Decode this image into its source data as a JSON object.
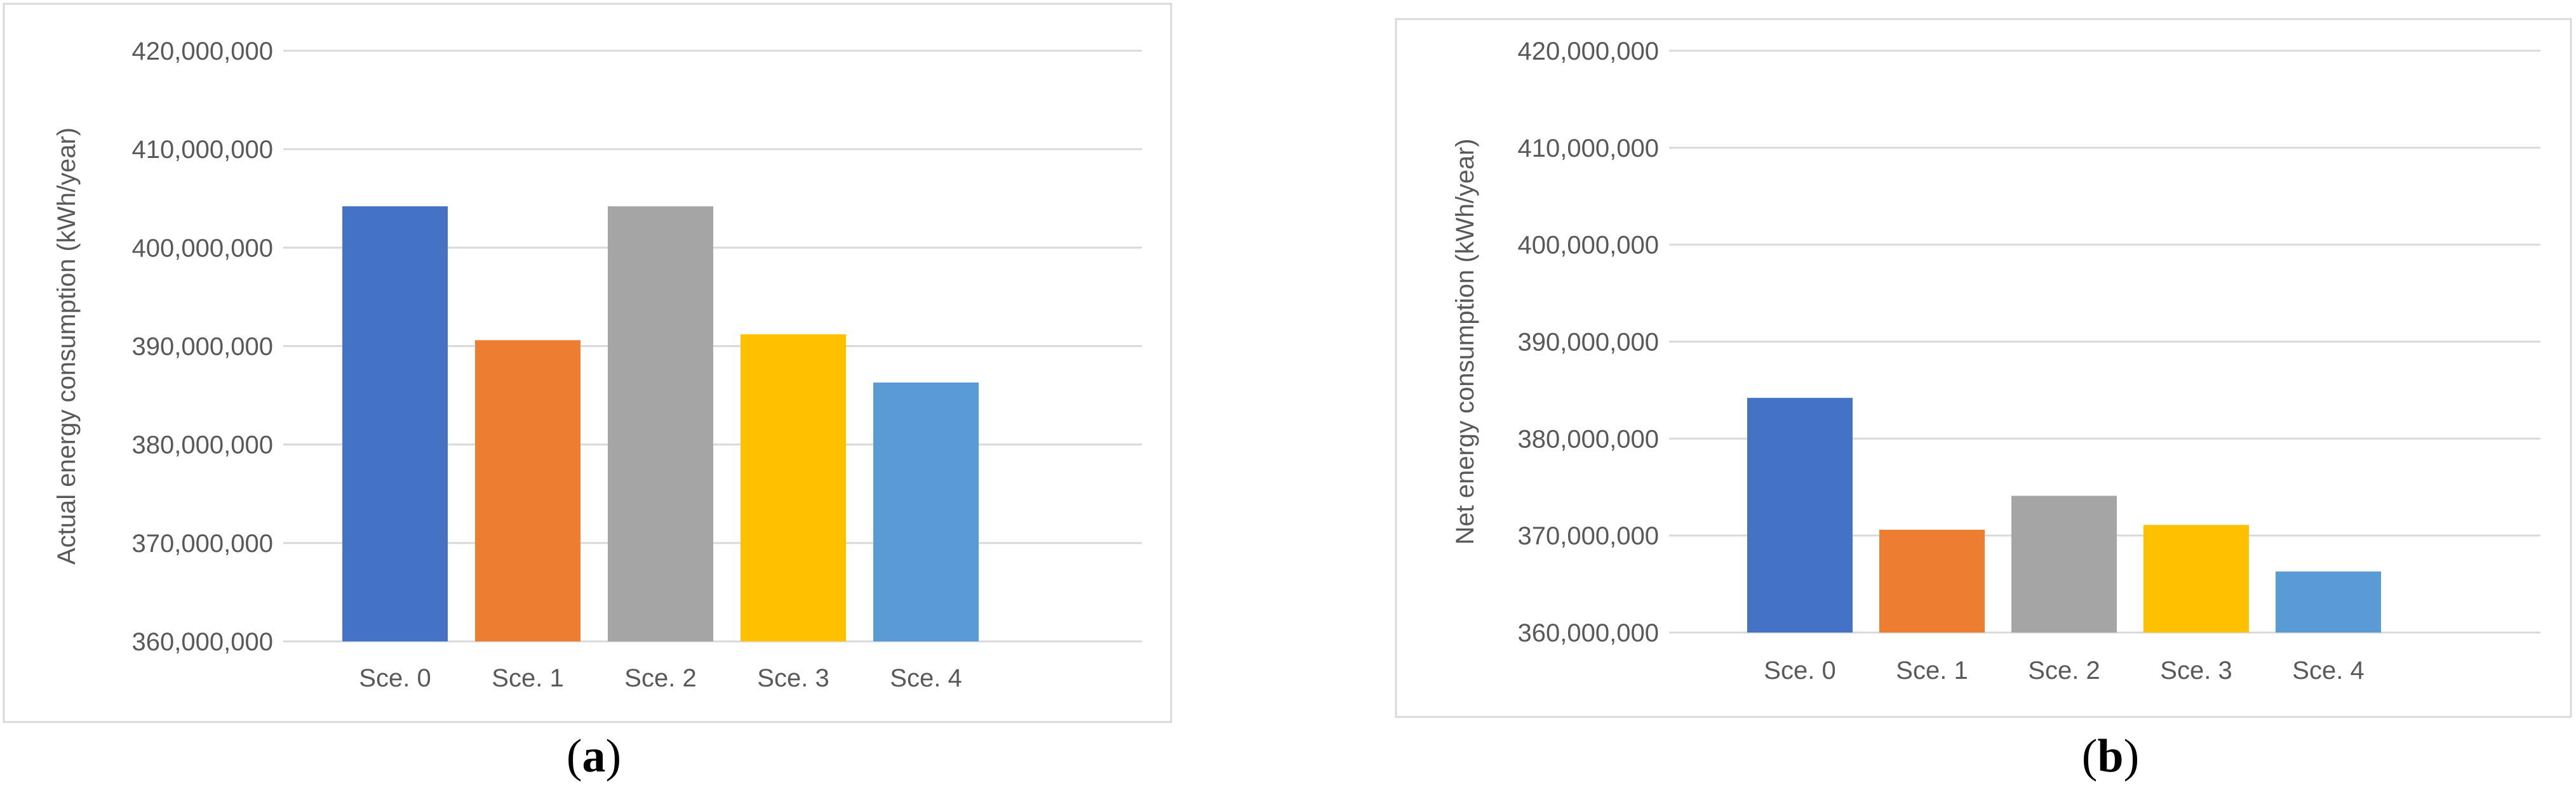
{
  "colors": {
    "frame": "#d9d9d9",
    "grid": "#d9d9d9",
    "text": "#595959"
  },
  "chart_data": [
    {
      "type": "bar",
      "panel_label": "a",
      "categories": [
        "Sce. 0",
        "Sce. 1",
        "Sce. 2",
        "Sce. 3",
        "Sce. 4"
      ],
      "values": [
        404200000,
        390600000,
        404200000,
        391200000,
        386300000
      ],
      "colors": [
        "#4472c4",
        "#ed7d31",
        "#a5a5a5",
        "#ffc000",
        "#5b9bd5"
      ],
      "ylabel": "Actual energy consumption (kWh/year)",
      "xlabel": "",
      "ylim": [
        360000000,
        420000000
      ],
      "yticks": [
        360000000,
        370000000,
        380000000,
        390000000,
        400000000,
        410000000,
        420000000
      ],
      "ytick_labels": [
        "360,000,000",
        "370,000,000",
        "380,000,000",
        "390,000,000",
        "400,000,000",
        "410,000,000",
        "420,000,000"
      ],
      "grid": true,
      "legend": "none"
    },
    {
      "type": "bar",
      "panel_label": "b",
      "categories": [
        "Sce. 0",
        "Sce. 1",
        "Sce. 2",
        "Sce. 3",
        "Sce. 4"
      ],
      "values": [
        384200000,
        370600000,
        374100000,
        371100000,
        366300000
      ],
      "colors": [
        "#4472c4",
        "#ed7d31",
        "#a5a5a5",
        "#ffc000",
        "#5b9bd5"
      ],
      "ylabel": "Net energy consumption (kWh/year)",
      "xlabel": "",
      "ylim": [
        360000000,
        420000000
      ],
      "yticks": [
        360000000,
        370000000,
        380000000,
        390000000,
        400000000,
        410000000,
        420000000
      ],
      "ytick_labels": [
        "360,000,000",
        "370,000,000",
        "380,000,000",
        "390,000,000",
        "400,000,000",
        "410,000,000",
        "420,000,000"
      ],
      "grid": true,
      "legend": "none"
    }
  ]
}
